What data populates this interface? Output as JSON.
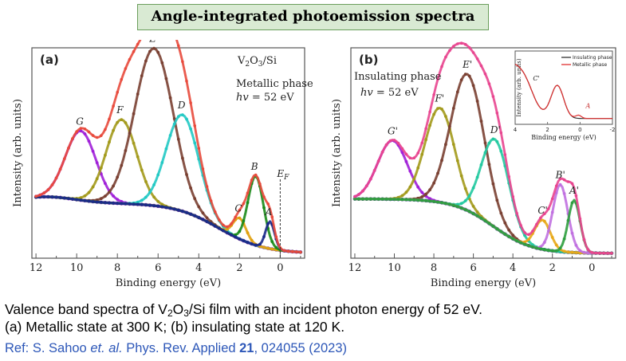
{
  "page_title": "Angle-integrated photoemission spectra",
  "caption": {
    "line1_a": "Valence band spectra of V",
    "line1_sub1": "2",
    "line1_mid": "O",
    "line1_sub2": "3",
    "line1_b": "/Si film with an incident photon energy of 52 eV.",
    "line2": "(a) Metallic state at 300 K; (b) insulating state at 120 K."
  },
  "reference": {
    "prefix": "Ref: S. Sahoo ",
    "etal": "et. al.",
    "journal": " Phys. Rev. Applied ",
    "volume": "21",
    "rest": ", 024055 (2023)"
  },
  "colors": {
    "total": "#e84a3c",
    "total_b": "#e8458f",
    "e": "#7a4032",
    "f": "#a39a1c",
    "g": "#a020d8",
    "d": "#22c9c4",
    "b": "#1a8a1a",
    "c": "#e0a010",
    "a": "#1a2a8a",
    "bg_a": "#9a22d6",
    "bg_b": "#1a2a8a",
    "bprime": "#c070e0",
    "aprime": "#2e9e3e",
    "cprime": "#e8a818",
    "dprime": "#22c9a0"
  },
  "chart_data": [
    {
      "type": "line",
      "panel_label": "(a)",
      "sample": "V2O3/Si",
      "sample_base": "V",
      "sample_sub1": "2",
      "sample_mid": "O",
      "sample_sub2": "3",
      "sample_end": "/Si",
      "annotation_phase": "Metallic phase",
      "annotation_energy": "hv = 52 eV",
      "annotation_energy_hv": "hv",
      "annotation_energy_val": " = 52 eV",
      "xlabel": "Binding energy (eV)",
      "ylabel": "Intensity (arb. units)",
      "xlim": [
        12.2,
        -1.2
      ],
      "ylim": [
        0,
        1.0
      ],
      "xticks": [
        "12",
        "10",
        "8",
        "6",
        "4",
        "2",
        "0"
      ],
      "xtick_values": [
        12,
        10,
        8,
        6,
        4,
        2,
        0
      ],
      "fermi_label": "E",
      "fermi_sub": "F",
      "fermi_energy": 0,
      "series": [
        {
          "name": "G",
          "center": 9.8,
          "amp": 0.33,
          "width": 0.75
        },
        {
          "name": "F",
          "center": 7.8,
          "amp": 0.4,
          "width": 0.75
        },
        {
          "name": "E",
          "center": 6.2,
          "amp": 0.75,
          "width": 0.95
        },
        {
          "name": "D",
          "center": 4.8,
          "amp": 0.46,
          "width": 0.8
        },
        {
          "name": "C",
          "center": 2.0,
          "amp": 0.1,
          "width": 0.32
        },
        {
          "name": "B",
          "center": 1.2,
          "amp": 0.33,
          "width": 0.38
        },
        {
          "name": "A",
          "center": 0.5,
          "amp": 0.13,
          "width": 0.22
        }
      ],
      "background": "Shirley background",
      "total": "Total fit",
      "peak_labels": [
        "G",
        "F",
        "E",
        "D",
        "C",
        "B",
        "A"
      ]
    },
    {
      "type": "line",
      "panel_label": "(b)",
      "annotation_phase": "Insulating phase",
      "annotation_energy": "hv = 52 eV",
      "annotation_energy_hv": "hv",
      "annotation_energy_val": " = 52 eV",
      "xlabel": "Binding energy (eV)",
      "ylabel": "Intensity (arb. units)",
      "xlim": [
        12.2,
        -1.2
      ],
      "ylim": [
        0,
        1.0
      ],
      "xticks": [
        "12",
        "10",
        "8",
        "6",
        "4",
        "2",
        "0"
      ],
      "xtick_values": [
        12,
        10,
        8,
        6,
        4,
        2,
        0
      ],
      "series": [
        {
          "name": "G'",
          "center": 10.1,
          "amp": 0.28,
          "width": 0.75
        },
        {
          "name": "F'",
          "center": 7.7,
          "amp": 0.45,
          "width": 0.75
        },
        {
          "name": "E'",
          "center": 6.3,
          "amp": 0.65,
          "width": 0.85
        },
        {
          "name": "D'",
          "center": 4.9,
          "amp": 0.42,
          "width": 0.7
        },
        {
          "name": "C'",
          "center": 2.5,
          "amp": 0.14,
          "width": 0.4
        },
        {
          "name": "B'",
          "center": 1.6,
          "amp": 0.32,
          "width": 0.38
        },
        {
          "name": "A'",
          "center": 0.9,
          "amp": 0.25,
          "width": 0.3
        }
      ],
      "background": "Shirley background",
      "total": "Total fit",
      "peak_labels": [
        "G'",
        "F'",
        "E'",
        "D'",
        "C'",
        "B'",
        "A'"
      ],
      "inset": {
        "type": "line",
        "xlabel": "Binding energy (eV)",
        "ylabel": "Intensity (arb. units)",
        "xlim": [
          4,
          -2
        ],
        "xticks": [
          "4",
          "2",
          "0",
          "-2"
        ],
        "xtick_values": [
          4,
          2,
          0,
          -2
        ],
        "legend": [
          "Insulating phase",
          "Metallic phase"
        ],
        "labels": [
          "C'",
          "A"
        ],
        "series": [
          {
            "name": "Insulating phase",
            "color": "#333333"
          },
          {
            "name": "Metallic phase",
            "color": "#e03030"
          }
        ]
      }
    }
  ]
}
